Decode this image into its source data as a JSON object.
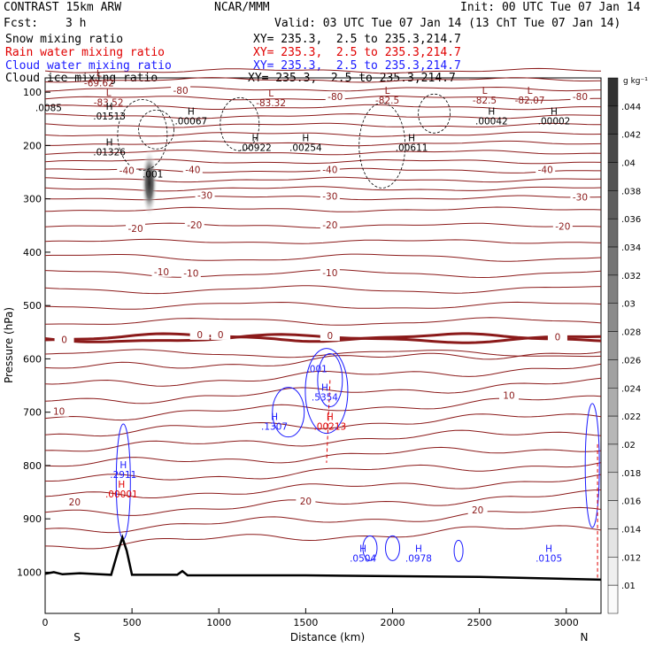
{
  "header": {
    "model": "CONTRAST 15km ARW",
    "org": "NCAR/MMM",
    "init": "Init: 00 UTC Tue 07 Jan 14",
    "fcst_label": "Fcst:",
    "fcst_value": "3 h",
    "valid": "Valid: 03 UTC Tue 07 Jan 14 (13 ChT Tue 07 Jan 14)",
    "fields": [
      {
        "name": "Snow mixing ratio",
        "xy": "XY= 235.3,  2.5 to 235.3,214.7",
        "color": "#000000"
      },
      {
        "name": "Rain water mixing ratio",
        "xy": "XY= 235.3,  2.5 to 235.3,214.7",
        "color": "#e00000"
      },
      {
        "name": "Cloud water mixing ratio",
        "xy": "XY= 235.3,  2.5 to 235.3,214.7",
        "color": "#1a1aff"
      },
      {
        "name": "Cloud ice mixing ratio",
        "xy": "XY= 235.3,  2.5 to 235.3,214.7",
        "color": "#000000"
      }
    ]
  },
  "colors": {
    "temperature": "#8b1a1a",
    "rain": "#e00000",
    "cloud_water": "#1a1aff",
    "ice": "#000000"
  },
  "chart_data": {
    "type": "cross-section",
    "xlabel": "Distance (km)",
    "ylabel": "Pressure (hPa)",
    "xlim": [
      0,
      3200
    ],
    "ylim": [
      1040,
      30
    ],
    "x_ticks": [
      0,
      500,
      1000,
      1500,
      2000,
      2500,
      3000
    ],
    "y_ticks": [
      100,
      200,
      300,
      400,
      500,
      600,
      700,
      800,
      900,
      1000
    ],
    "endpoints": {
      "left": "S",
      "right": "N"
    },
    "colorbar": {
      "unit": "g kg⁻¹",
      "ticks": [
        ".044",
        ".042",
        ".04",
        ".038",
        ".036",
        ".034",
        ".032",
        ".03",
        ".028",
        ".026",
        ".024",
        ".022",
        ".02",
        ".018",
        ".016",
        ".014",
        ".012",
        ".01"
      ]
    },
    "temperature_labels": [
      {
        "x": 780,
        "p": 98,
        "text": "-80"
      },
      {
        "x": 1670,
        "p": 110,
        "text": "-80"
      },
      {
        "x": 3080,
        "p": 110,
        "text": "-80"
      },
      {
        "x": 470,
        "p": 248,
        "text": "-40"
      },
      {
        "x": 850,
        "p": 247,
        "text": "-40"
      },
      {
        "x": 1640,
        "p": 247,
        "text": "-40"
      },
      {
        "x": 2880,
        "p": 247,
        "text": "-40"
      },
      {
        "x": 920,
        "p": 295,
        "text": "-30"
      },
      {
        "x": 1640,
        "p": 296,
        "text": "-30"
      },
      {
        "x": 3080,
        "p": 298,
        "text": "-30"
      },
      {
        "x": 520,
        "p": 357,
        "text": "-20"
      },
      {
        "x": 860,
        "p": 350,
        "text": "-20"
      },
      {
        "x": 1640,
        "p": 350,
        "text": "-20"
      },
      {
        "x": 2980,
        "p": 353,
        "text": "-20"
      },
      {
        "x": 670,
        "p": 438,
        "text": "-10"
      },
      {
        "x": 840,
        "p": 441,
        "text": "-10"
      },
      {
        "x": 1640,
        "p": 440,
        "text": "-10"
      },
      {
        "x": 110,
        "p": 565,
        "text": "0"
      },
      {
        "x": 890,
        "p": 556,
        "text": "0"
      },
      {
        "x": 1010,
        "p": 556,
        "text": "0"
      },
      {
        "x": 1640,
        "p": 558,
        "text": "0"
      },
      {
        "x": 2950,
        "p": 560,
        "text": "0"
      },
      {
        "x": 80,
        "p": 700,
        "text": "10"
      },
      {
        "x": 2670,
        "p": 670,
        "text": "10"
      },
      {
        "x": 170,
        "p": 870,
        "text": "20"
      },
      {
        "x": 1500,
        "p": 868,
        "text": "20"
      },
      {
        "x": 2490,
        "p": 885,
        "text": "20"
      }
    ],
    "extrema": [
      {
        "x": 310,
        "p": 71,
        "letter": "L",
        "value": "-69.62",
        "color": "#8b1a1a"
      },
      {
        "x": 365,
        "p": 107,
        "letter": "L",
        "value": "-83.52",
        "color": "#8b1a1a"
      },
      {
        "x": 1300,
        "p": 108,
        "letter": "L",
        "value": "-83.32",
        "color": "#8b1a1a"
      },
      {
        "x": 1970,
        "p": 103,
        "letter": "L",
        "value": "-82.5",
        "color": "#8b1a1a"
      },
      {
        "x": 2530,
        "p": 103,
        "letter": "L",
        "value": "-82.5",
        "color": "#8b1a1a"
      },
      {
        "x": 2790,
        "p": 103,
        "letter": "L",
        "value": "-82.07",
        "color": "#8b1a1a"
      },
      {
        "x": 370,
        "p": 133,
        "letter": "H",
        "value": ".01513",
        "color": "#000000"
      },
      {
        "x": 20,
        "p": 135,
        "letter": "",
        "value": ".0085",
        "color": "#000000"
      },
      {
        "x": 840,
        "p": 142,
        "letter": "H",
        "value": ".00067",
        "color": "#000000"
      },
      {
        "x": 1210,
        "p": 192,
        "letter": "H",
        "value": ".00922",
        "color": "#000000"
      },
      {
        "x": 1500,
        "p": 192,
        "letter": "H",
        "value": ".00254",
        "color": "#000000"
      },
      {
        "x": 2110,
        "p": 192,
        "letter": "H",
        "value": ".00611",
        "color": "#000000"
      },
      {
        "x": 2570,
        "p": 142,
        "letter": "H",
        "value": ".00042",
        "color": "#000000"
      },
      {
        "x": 2930,
        "p": 142,
        "letter": "H",
        "value": ".00002",
        "color": "#000000"
      },
      {
        "x": 370,
        "p": 200,
        "letter": "H",
        "value": ".01326",
        "color": "#000000"
      },
      {
        "x": 620,
        "p": 260,
        "letter": "",
        "value": ".001",
        "color": "#000000"
      },
      {
        "x": 1565,
        "p": 625,
        "letter": "",
        "value": ".001",
        "color": "#1a1aff"
      },
      {
        "x": 1610,
        "p": 660,
        "letter": "H",
        "value": ".5354",
        "color": "#1a1aff"
      },
      {
        "x": 1320,
        "p": 715,
        "letter": "H",
        "value": ".1307",
        "color": "#1a1aff"
      },
      {
        "x": 1640,
        "p": 715,
        "letter": "H",
        "value": ".00213",
        "color": "#e00000"
      },
      {
        "x": 450,
        "p": 805,
        "letter": "H",
        "value": ".2911",
        "color": "#1a1aff"
      },
      {
        "x": 440,
        "p": 842,
        "letter": "H",
        "value": ".00001",
        "color": "#e00000"
      },
      {
        "x": 1830,
        "p": 962,
        "letter": "H",
        "value": ".0504",
        "color": "#1a1aff"
      },
      {
        "x": 2150,
        "p": 962,
        "letter": "H",
        "value": ".0978",
        "color": "#1a1aff"
      },
      {
        "x": 2900,
        "p": 962,
        "letter": "H",
        "value": ".0105",
        "color": "#1a1aff"
      }
    ]
  }
}
